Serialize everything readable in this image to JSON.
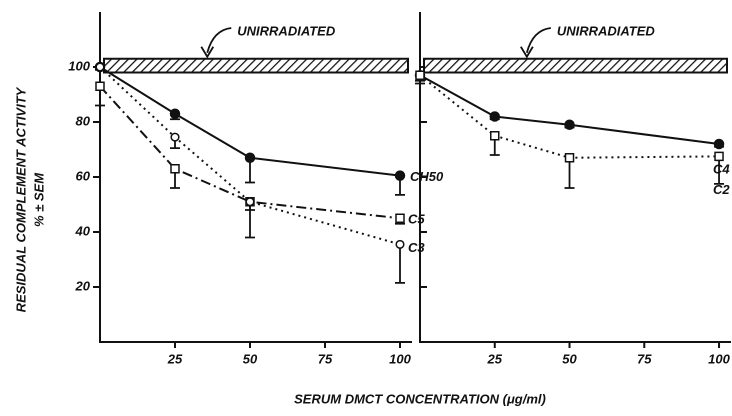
{
  "chart_data": [
    {
      "type": "line",
      "ylabel": [
        "RESIDUAL COMPLEMENT ACTIVITY",
        "% ± SEM"
      ],
      "xlabel": "SERUM DMCT CONCENTRATION (μg/ml)",
      "xlim": [
        0,
        104
      ],
      "ylim": [
        0,
        120
      ],
      "xticks": [
        25,
        50,
        75,
        100
      ],
      "yticks": [
        20,
        40,
        60,
        80,
        100
      ],
      "band": {
        "label": "UNIRRADIATED",
        "range": [
          98,
          103
        ]
      },
      "x": [
        0,
        25,
        50,
        100
      ],
      "series": [
        {
          "name": "CH50",
          "color": "#111111",
          "marker": "filled-circle",
          "line": "solid",
          "values": [
            100,
            83,
            67,
            60.5
          ],
          "errors": [
            1,
            2,
            9,
            7
          ]
        },
        {
          "name": "C5",
          "color": "#111111",
          "marker": "open-square",
          "line": "dashdot",
          "values": [
            93,
            63,
            51,
            45
          ],
          "errors": [
            7,
            7,
            3,
            2
          ]
        },
        {
          "name": "C3",
          "color": "#111111",
          "marker": "open-circle",
          "line": "dotted",
          "values": [
            100,
            74.5,
            51,
            35.5
          ],
          "errors": [
            1,
            4,
            13,
            14
          ]
        }
      ]
    },
    {
      "type": "line",
      "xlim": [
        0,
        104
      ],
      "ylim": [
        0,
        120
      ],
      "xticks": [
        25,
        50,
        75,
        100
      ],
      "yticks": [
        20,
        40,
        60,
        80,
        100
      ],
      "band": {
        "label": "UNIRRADIATED",
        "range": [
          98,
          103
        ]
      },
      "x": [
        0,
        25,
        50,
        100
      ],
      "series": [
        {
          "name": "C4",
          "color": "#111111",
          "marker": "filled-circle",
          "line": "solid",
          "values": [
            97,
            82,
            79,
            72
          ],
          "errors": [
            2,
            1,
            1,
            1
          ]
        },
        {
          "name": "C2",
          "color": "#111111",
          "marker": "open-square",
          "line": "dotted",
          "values": [
            97,
            75,
            67,
            67.5
          ],
          "errors": [
            3,
            7,
            11,
            10
          ]
        }
      ]
    }
  ]
}
